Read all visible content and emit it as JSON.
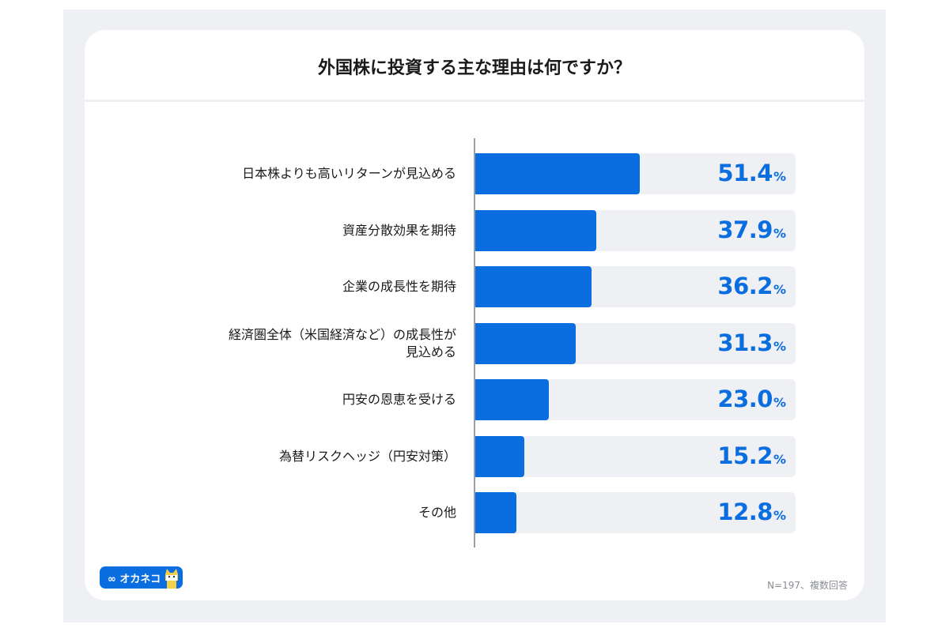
{
  "chart_data": {
    "type": "bar",
    "orientation": "horizontal",
    "title": "外国株に投資する主な理由は何ですか？",
    "categories": [
      "日本株よりも高いリターンが見込める",
      "資産分散効果を期待",
      "企業の成長性を期待",
      "経済圏全体（米国経済など）の成長性が\n見込める",
      "円安の恩恵を受ける",
      "為替リスクヘッジ（円安対策）",
      "その他"
    ],
    "values": [
      51.4,
      37.9,
      36.2,
      31.3,
      23.0,
      15.2,
      12.8
    ],
    "value_labels": [
      "51.4",
      "37.9",
      "36.2",
      "31.3",
      "23.0",
      "15.2",
      "12.8"
    ],
    "unit": "%",
    "xlim": [
      0,
      100
    ],
    "note": "N=197、複数回答",
    "colors": {
      "bar": "#0a6de0",
      "track": "#eef0f3"
    }
  },
  "brand": {
    "logo_text": "∞ オカネコ"
  }
}
